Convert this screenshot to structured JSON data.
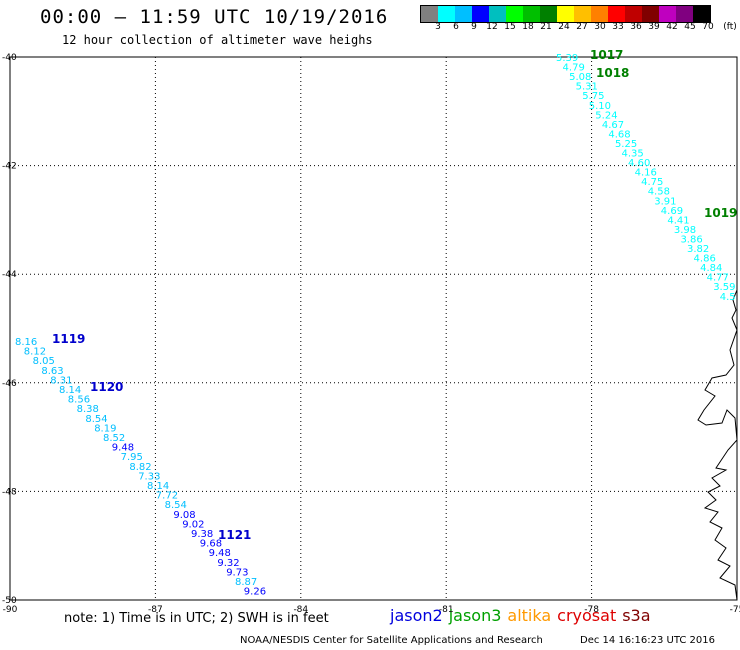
{
  "title": "00:00 – 11:59 UTC 10/19/2016",
  "subtitle": "12 hour collection of altimeter wave heighs",
  "legend": {
    "unit": "(ft)",
    "colors": [
      "#808080",
      "#00ffff",
      "#00bfff",
      "#0000ff",
      "#00bfbf",
      "#00ff00",
      "#00bf00",
      "#008000",
      "#ffff00",
      "#ffbf00",
      "#ff8000",
      "#ff0000",
      "#bf0000",
      "#800000",
      "#bf00bf",
      "#800080",
      "#000000"
    ],
    "labels": [
      "3",
      "6",
      "9",
      "12",
      "15",
      "18",
      "21",
      "24",
      "27",
      "30",
      "33",
      "36",
      "39",
      "42",
      "45",
      "70"
    ]
  },
  "axes": {
    "lat_labels": [
      "-40",
      "-42",
      "-44",
      "-46",
      "-48",
      "-50"
    ],
    "lon_labels": [
      "-90",
      "-87",
      "-84",
      "-81",
      "-78",
      "-75"
    ]
  },
  "tracks": [
    {
      "satellite": "jason2",
      "points": [
        {
          "v": "8.16",
          "c": "#00bfff"
        },
        {
          "v": "8.12",
          "c": "#00bfff"
        },
        {
          "v": "8.05",
          "c": "#00bfff"
        },
        {
          "v": "8.63",
          "c": "#00bfff"
        },
        {
          "v": "8.31",
          "c": "#00bfff"
        },
        {
          "v": "8.14",
          "c": "#00bfff"
        },
        {
          "v": "8.56",
          "c": "#00bfff"
        },
        {
          "v": "8.38",
          "c": "#00bfff"
        },
        {
          "v": "8.54",
          "c": "#00bfff"
        },
        {
          "v": "8.19",
          "c": "#00bfff"
        },
        {
          "v": "8.52",
          "c": "#00bfff"
        },
        {
          "v": "9.48",
          "c": "#0000ff"
        },
        {
          "v": "7.95",
          "c": "#00bfff"
        },
        {
          "v": "8.82",
          "c": "#00bfff"
        },
        {
          "v": "7.33",
          "c": "#00bfff"
        },
        {
          "v": "8.14",
          "c": "#00bfff"
        },
        {
          "v": "7.72",
          "c": "#00bfff"
        },
        {
          "v": "8.54",
          "c": "#00bfff"
        },
        {
          "v": "9.08",
          "c": "#0000ff"
        },
        {
          "v": "9.02",
          "c": "#0000ff"
        },
        {
          "v": "9.38",
          "c": "#0000ff"
        },
        {
          "v": "9.68",
          "c": "#0000ff"
        },
        {
          "v": "9.48",
          "c": "#0000ff"
        },
        {
          "v": "9.32",
          "c": "#0000ff"
        },
        {
          "v": "9.73",
          "c": "#0000ff"
        },
        {
          "v": "8.87",
          "c": "#00bfff"
        },
        {
          "v": "9.26",
          "c": "#0000ff"
        }
      ],
      "times": [
        "1119",
        "1120",
        "1121"
      ]
    },
    {
      "satellite": "jason3",
      "points": [
        {
          "v": "5.39",
          "c": "#00ffff"
        },
        {
          "v": "4.79",
          "c": "#00ffff"
        },
        {
          "v": "5.08",
          "c": "#00ffff"
        },
        {
          "v": "5.31",
          "c": "#00ffff"
        },
        {
          "v": "5.75",
          "c": "#00ffff"
        },
        {
          "v": "5.10",
          "c": "#00ffff"
        },
        {
          "v": "5.24",
          "c": "#00ffff"
        },
        {
          "v": "4.67",
          "c": "#00ffff"
        },
        {
          "v": "4.68",
          "c": "#00ffff"
        },
        {
          "v": "5.25",
          "c": "#00ffff"
        },
        {
          "v": "4.35",
          "c": "#00ffff"
        },
        {
          "v": "4.60",
          "c": "#00ffff"
        },
        {
          "v": "4.16",
          "c": "#00ffff"
        },
        {
          "v": "4.75",
          "c": "#00ffff"
        },
        {
          "v": "4.58",
          "c": "#00ffff"
        },
        {
          "v": "3.91",
          "c": "#00ffff"
        },
        {
          "v": "4.69",
          "c": "#00ffff"
        },
        {
          "v": "4.41",
          "c": "#00ffff"
        },
        {
          "v": "3.98",
          "c": "#00ffff"
        },
        {
          "v": "3.86",
          "c": "#00ffff"
        },
        {
          "v": "3.82",
          "c": "#00ffff"
        },
        {
          "v": "4.86",
          "c": "#00ffff"
        },
        {
          "v": "4.84",
          "c": "#00ffff"
        },
        {
          "v": "4.77",
          "c": "#00ffff"
        },
        {
          "v": "3.59",
          "c": "#00ffff"
        },
        {
          "v": "4.5",
          "c": "#00ffff"
        }
      ],
      "times": [
        "1017",
        "1018",
        "1019"
      ]
    }
  ],
  "footer": {
    "note": "note: 1) Time is in UTC; 2) SWH is in feet",
    "satellites": [
      {
        "name": "jason2",
        "color": "#0000dd"
      },
      {
        "name": "jason3",
        "color": "#00a000"
      },
      {
        "name": "altika",
        "color": "#ff9900"
      },
      {
        "name": "cryosat",
        "color": "#dd0000"
      },
      {
        "name": "s3a",
        "color": "#800000"
      }
    ],
    "credit": "NOAA/NESDIS Center for Satellite Applications and Research",
    "date": "Dec 14 16:16:23 UTC 2016"
  }
}
